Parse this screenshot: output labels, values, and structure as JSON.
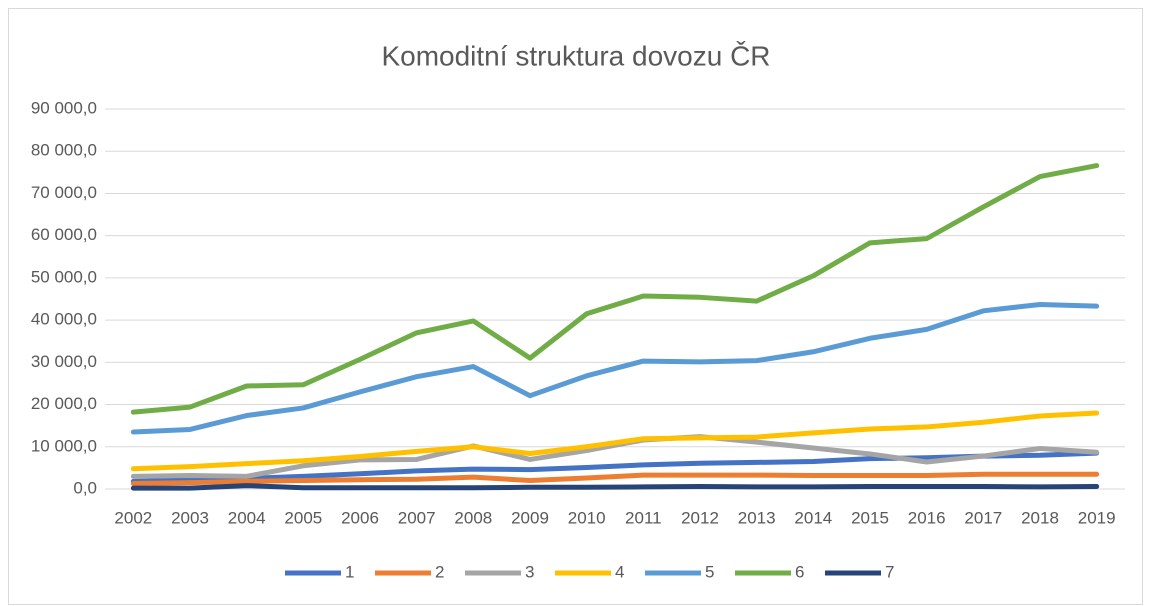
{
  "chart_data": {
    "type": "line",
    "title": "Komoditní struktura dovozu ČR",
    "categories": [
      "2002",
      "2003",
      "2004",
      "2005",
      "2006",
      "2007",
      "2008",
      "2009",
      "2010",
      "2011",
      "2012",
      "2013",
      "2014",
      "2015",
      "2016",
      "2017",
      "2018",
      "2019"
    ],
    "series": [
      {
        "name": "1",
        "color": "#4472c4",
        "values": [
          1800,
          2100,
          2500,
          3000,
          3600,
          4300,
          4700,
          4600,
          5100,
          5700,
          6100,
          6300,
          6500,
          7200,
          7400,
          7800,
          8000,
          8500
        ]
      },
      {
        "name": "2",
        "color": "#ed7d31",
        "values": [
          1300,
          1500,
          1800,
          2000,
          2200,
          2300,
          2800,
          2000,
          2600,
          3300,
          3300,
          3300,
          3200,
          3200,
          3200,
          3500,
          3500,
          3500
        ]
      },
      {
        "name": "3",
        "color": "#a5a5a5",
        "values": [
          3000,
          3200,
          3000,
          5500,
          6900,
          7000,
          10200,
          7000,
          9100,
          11600,
          12400,
          11100,
          9700,
          8300,
          6400,
          7800,
          9600,
          8700
        ]
      },
      {
        "name": "4",
        "color": "#ffc000",
        "values": [
          4800,
          5300,
          6000,
          6700,
          7700,
          8900,
          10000,
          8400,
          10000,
          11900,
          12100,
          12300,
          13300,
          14200,
          14700,
          15800,
          17300,
          18000
        ]
      },
      {
        "name": "5",
        "color": "#5b9bd5",
        "values": [
          13500,
          14100,
          17400,
          19200,
          23000,
          26600,
          29000,
          22100,
          26800,
          30300,
          30100,
          30400,
          32500,
          35700,
          37800,
          42200,
          43700,
          43300
        ]
      },
      {
        "name": "6",
        "color": "#70ad47",
        "values": [
          18200,
          19400,
          24400,
          24700,
          30700,
          37000,
          39800,
          31000,
          41500,
          45700,
          45400,
          44500,
          50500,
          58300,
          59300,
          66800,
          74000,
          76600
        ]
      },
      {
        "name": "7",
        "color": "#264478",
        "values": [
          200,
          200,
          800,
          300,
          300,
          300,
          300,
          400,
          400,
          500,
          600,
          500,
          500,
          600,
          600,
          600,
          500,
          600
        ]
      }
    ],
    "ylim": [
      0,
      90000
    ],
    "yticks": [
      {
        "value": 0,
        "label": "0,0"
      },
      {
        "value": 10000,
        "label": "10 000,0"
      },
      {
        "value": 20000,
        "label": "20 000,0"
      },
      {
        "value": 30000,
        "label": "30 000,0"
      },
      {
        "value": 40000,
        "label": "40 000,0"
      },
      {
        "value": 50000,
        "label": "50 000,0"
      },
      {
        "value": 60000,
        "label": "60 000,0"
      },
      {
        "value": 70000,
        "label": "70 000,0"
      },
      {
        "value": 80000,
        "label": "80 000,0"
      },
      {
        "value": 90000,
        "label": "90 000,0"
      }
    ],
    "grid": true,
    "legend": "bottom"
  }
}
